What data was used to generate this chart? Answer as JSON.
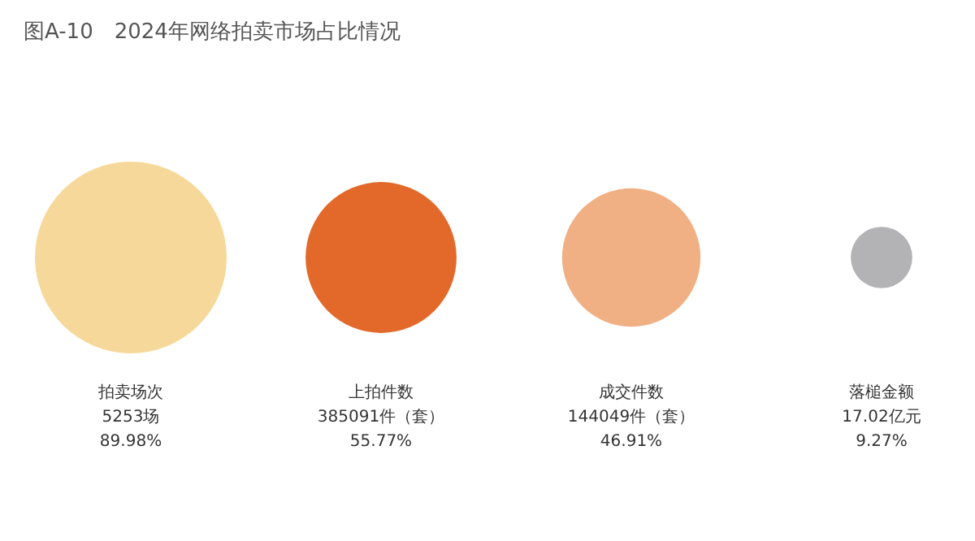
{
  "chart_data": {
    "type": "other",
    "title": "图A-10　2024年网络拍卖市场占比情况",
    "categories": [
      "拍卖场次",
      "上拍件数",
      "成交件数",
      "落槌金额"
    ],
    "values": [
      89.98,
      55.77,
      46.91,
      9.27
    ],
    "colors": [
      "#f6d99a",
      "#e2692a",
      "#f0b083",
      "#b3b3b5"
    ],
    "value_labels": [
      "5253场\n89.98%",
      "385091件（套）\n55.77%",
      "144049件（套）\n46.91%",
      "17.02亿元\n9.27%"
    ]
  }
}
